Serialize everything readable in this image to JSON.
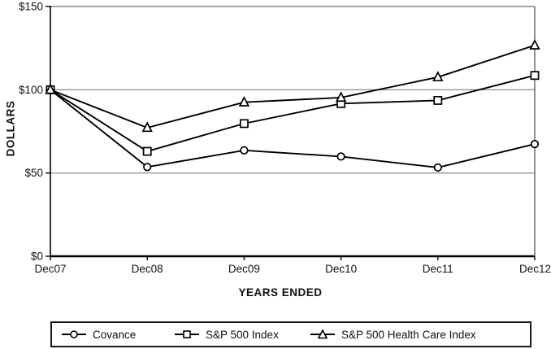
{
  "chart_data": {
    "type": "line",
    "title": "",
    "xlabel": "YEARS ENDED",
    "ylabel": "DOLLARS",
    "categories": [
      "Dec07",
      "Dec08",
      "Dec09",
      "Dec10",
      "Dec11",
      "Dec12"
    ],
    "series": [
      {
        "name": "Covance",
        "marker": "circle",
        "values": [
          100,
          53.6,
          63.6,
          59.9,
          53.3,
          67.4
        ]
      },
      {
        "name": "S&P 500 Index",
        "marker": "square",
        "values": [
          100,
          63.0,
          79.7,
          91.7,
          93.6,
          108.6
        ]
      },
      {
        "name": "S&P 500 Health Care Index",
        "marker": "triangle",
        "values": [
          100,
          77.2,
          92.5,
          95.3,
          107.6,
          126.7
        ]
      }
    ],
    "y_ticks": [
      {
        "value": 0,
        "label": "$0"
      },
      {
        "value": 50,
        "label": "$50"
      },
      {
        "value": 100,
        "label": "$100"
      },
      {
        "value": 150,
        "label": "$150"
      }
    ],
    "ylim": [
      0,
      150
    ],
    "grid": "horizontal",
    "legend_position": "bottom",
    "line_color": "#000000",
    "marker_fill": "#ffffff",
    "grid_color": "#7d7d7d",
    "background": "#ffffff"
  }
}
